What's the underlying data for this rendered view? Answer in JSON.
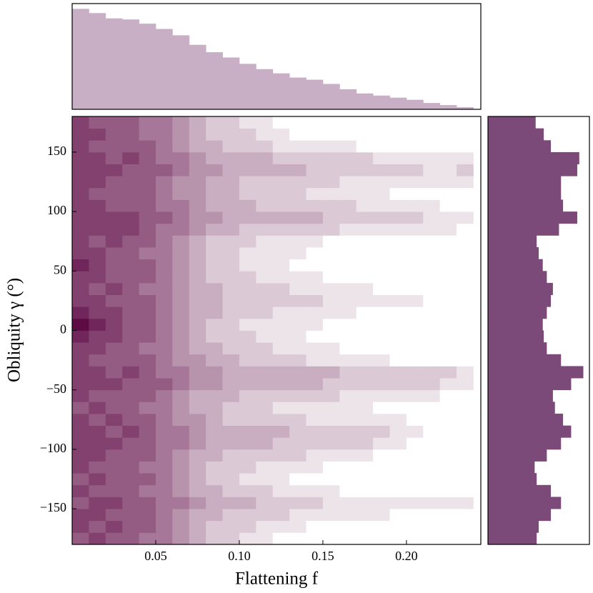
{
  "chart_data": [
    {
      "type": "heatmap",
      "xlabel": "Flattening f",
      "ylabel": "Obliquity γ (°)",
      "xbins": [
        0,
        0.01,
        0.02,
        0.03,
        0.04,
        0.05,
        0.06,
        0.07,
        0.08,
        0.09,
        0.1,
        0.11,
        0.12,
        0.13,
        0.14,
        0.15,
        0.16,
        0.17,
        0.18,
        0.19,
        0.2,
        0.21,
        0.22,
        0.23,
        0.24
      ],
      "ybins": [
        -180,
        -170,
        -160,
        -150,
        -140,
        -130,
        -120,
        -110,
        -100,
        -90,
        -80,
        -70,
        -60,
        -50,
        -40,
        -30,
        -20,
        -10,
        0,
        10,
        20,
        30,
        40,
        50,
        60,
        70,
        80,
        90,
        100,
        110,
        120,
        130,
        140,
        150,
        160,
        170,
        180
      ],
      "values": [
        [
          6,
          7,
          6,
          6,
          5,
          5,
          4,
          3,
          2,
          2,
          1,
          1,
          0,
          0,
          0,
          0,
          0,
          0,
          0,
          0,
          0,
          0,
          0,
          0
        ],
        [
          7,
          6,
          7,
          6,
          6,
          5,
          4,
          3,
          2,
          2,
          2,
          1,
          1,
          1,
          0,
          0,
          0,
          0,
          0,
          0,
          0,
          0,
          0,
          0
        ],
        [
          7,
          7,
          6,
          6,
          6,
          5,
          4,
          3,
          3,
          2,
          2,
          2,
          2,
          1,
          1,
          1,
          1,
          1,
          1,
          0,
          0,
          0,
          0,
          0
        ],
        [
          6,
          7,
          7,
          6,
          6,
          5,
          5,
          4,
          3,
          3,
          3,
          2,
          2,
          2,
          2,
          1,
          1,
          1,
          1,
          1,
          1,
          1,
          1,
          1
        ],
        [
          7,
          6,
          6,
          6,
          5,
          5,
          4,
          3,
          3,
          2,
          2,
          2,
          1,
          1,
          1,
          1,
          0,
          0,
          0,
          0,
          0,
          0,
          0,
          0
        ],
        [
          6,
          7,
          6,
          6,
          6,
          5,
          4,
          3,
          2,
          2,
          1,
          1,
          1,
          0,
          0,
          0,
          0,
          0,
          0,
          0,
          0,
          0,
          0,
          0
        ],
        [
          7,
          6,
          6,
          6,
          5,
          5,
          4,
          3,
          2,
          2,
          2,
          1,
          1,
          1,
          1,
          0,
          0,
          0,
          0,
          0,
          0,
          0,
          0,
          0
        ],
        [
          7,
          7,
          6,
          6,
          6,
          5,
          4,
          3,
          3,
          2,
          2,
          2,
          2,
          2,
          1,
          1,
          1,
          1,
          0,
          0,
          0,
          0,
          0,
          0
        ],
        [
          7,
          7,
          7,
          6,
          6,
          5,
          5,
          4,
          3,
          3,
          3,
          3,
          2,
          2,
          2,
          2,
          2,
          2,
          1,
          1,
          0,
          0,
          0,
          0
        ],
        [
          7,
          7,
          6,
          7,
          6,
          5,
          5,
          4,
          3,
          3,
          3,
          3,
          3,
          2,
          2,
          2,
          2,
          2,
          2,
          1,
          1,
          0,
          0,
          0
        ],
        [
          7,
          6,
          7,
          6,
          6,
          5,
          4,
          4,
          3,
          2,
          2,
          2,
          2,
          2,
          1,
          1,
          1,
          1,
          1,
          1,
          0,
          0,
          0,
          0
        ],
        [
          6,
          7,
          6,
          6,
          5,
          5,
          4,
          3,
          3,
          2,
          2,
          2,
          1,
          1,
          1,
          1,
          1,
          1,
          0,
          0,
          0,
          0,
          0,
          0
        ],
        [
          7,
          6,
          6,
          6,
          6,
          5,
          4,
          3,
          3,
          3,
          2,
          2,
          2,
          2,
          2,
          2,
          1,
          1,
          1,
          1,
          1,
          1,
          0,
          0
        ],
        [
          7,
          7,
          7,
          6,
          6,
          6,
          5,
          4,
          4,
          3,
          3,
          3,
          3,
          3,
          3,
          2,
          2,
          2,
          2,
          2,
          2,
          2,
          1,
          1
        ],
        [
          7,
          7,
          6,
          7,
          6,
          5,
          5,
          4,
          4,
          3,
          3,
          3,
          3,
          3,
          3,
          3,
          2,
          2,
          2,
          2,
          2,
          2,
          2,
          1
        ],
        [
          7,
          6,
          6,
          6,
          6,
          5,
          4,
          4,
          3,
          3,
          2,
          2,
          2,
          2,
          1,
          1,
          1,
          1,
          1,
          0,
          0,
          0,
          0,
          0
        ],
        [
          7,
          7,
          6,
          6,
          5,
          5,
          4,
          3,
          3,
          2,
          2,
          2,
          1,
          1,
          1,
          1,
          0,
          0,
          0,
          0,
          0,
          0,
          0,
          0
        ],
        [
          8,
          7,
          7,
          6,
          6,
          5,
          4,
          3,
          2,
          2,
          2,
          1,
          1,
          1,
          0,
          0,
          0,
          0,
          0,
          0,
          0,
          0,
          0,
          0
        ],
        [
          9,
          8,
          7,
          6,
          6,
          5,
          4,
          3,
          2,
          2,
          1,
          1,
          1,
          1,
          1,
          0,
          0,
          0,
          0,
          0,
          0,
          0,
          0,
          0
        ],
        [
          8,
          7,
          7,
          6,
          6,
          5,
          4,
          3,
          3,
          2,
          2,
          2,
          1,
          1,
          1,
          1,
          1,
          0,
          0,
          0,
          0,
          0,
          0,
          0
        ],
        [
          7,
          7,
          6,
          6,
          6,
          5,
          4,
          3,
          3,
          2,
          2,
          2,
          2,
          2,
          2,
          1,
          1,
          1,
          1,
          1,
          1,
          0,
          0,
          0
        ],
        [
          7,
          6,
          7,
          6,
          5,
          5,
          4,
          3,
          3,
          2,
          2,
          2,
          2,
          1,
          1,
          1,
          1,
          1,
          0,
          0,
          0,
          0,
          0,
          0
        ],
        [
          7,
          7,
          6,
          6,
          6,
          5,
          4,
          3,
          2,
          2,
          2,
          1,
          1,
          1,
          1,
          0,
          0,
          0,
          0,
          0,
          0,
          0,
          0,
          0
        ],
        [
          8,
          7,
          6,
          6,
          6,
          5,
          4,
          3,
          2,
          2,
          1,
          1,
          1,
          0,
          0,
          0,
          0,
          0,
          0,
          0,
          0,
          0,
          0,
          0
        ],
        [
          7,
          7,
          6,
          6,
          5,
          5,
          4,
          3,
          2,
          2,
          1,
          1,
          1,
          1,
          0,
          0,
          0,
          0,
          0,
          0,
          0,
          0,
          0,
          0
        ],
        [
          7,
          6,
          7,
          6,
          6,
          5,
          4,
          3,
          2,
          2,
          2,
          1,
          1,
          1,
          1,
          0,
          0,
          0,
          0,
          0,
          0,
          0,
          0,
          0
        ],
        [
          7,
          7,
          7,
          7,
          6,
          5,
          5,
          4,
          3,
          3,
          2,
          2,
          2,
          2,
          2,
          2,
          1,
          1,
          1,
          1,
          1,
          1,
          1,
          0
        ],
        [
          7,
          7,
          7,
          7,
          6,
          6,
          5,
          4,
          4,
          3,
          3,
          3,
          3,
          3,
          3,
          2,
          2,
          2,
          2,
          2,
          2,
          1,
          1,
          1
        ],
        [
          7,
          7,
          6,
          6,
          6,
          5,
          5,
          4,
          3,
          3,
          3,
          2,
          2,
          2,
          2,
          2,
          2,
          1,
          1,
          1,
          1,
          1,
          0,
          0
        ],
        [
          7,
          6,
          6,
          6,
          6,
          5,
          4,
          4,
          3,
          3,
          2,
          2,
          2,
          2,
          1,
          1,
          1,
          1,
          1,
          0,
          0,
          0,
          0,
          0
        ],
        [
          7,
          7,
          6,
          6,
          6,
          5,
          4,
          4,
          3,
          3,
          2,
          2,
          2,
          2,
          2,
          2,
          1,
          1,
          1,
          1,
          1,
          1,
          1,
          1
        ],
        [
          7,
          7,
          7,
          6,
          6,
          6,
          5,
          4,
          4,
          3,
          3,
          3,
          3,
          3,
          2,
          2,
          2,
          2,
          2,
          2,
          2,
          1,
          1,
          2
        ],
        [
          7,
          7,
          6,
          7,
          6,
          5,
          5,
          4,
          3,
          3,
          3,
          3,
          2,
          2,
          2,
          2,
          2,
          2,
          1,
          1,
          1,
          1,
          1,
          1
        ],
        [
          7,
          6,
          6,
          6,
          6,
          5,
          4,
          3,
          3,
          2,
          2,
          2,
          1,
          1,
          1,
          1,
          1,
          0,
          0,
          0,
          0,
          0,
          0,
          0
        ],
        [
          7,
          7,
          6,
          6,
          5,
          5,
          4,
          3,
          2,
          2,
          2,
          1,
          1,
          0,
          0,
          0,
          0,
          0,
          0,
          0,
          0,
          0,
          0,
          0
        ],
        [
          7,
          6,
          6,
          6,
          5,
          5,
          4,
          3,
          2,
          2,
          1,
          1,
          0,
          0,
          0,
          0,
          0,
          0,
          0,
          0,
          0,
          0,
          0,
          0
        ]
      ],
      "colors": [
        "#ffffff",
        "#5e0b45"
      ],
      "clim": [
        0,
        9
      ],
      "xlim": [
        0,
        0.2445
      ],
      "ylim": [
        -180,
        180
      ],
      "xticks": [
        0.05,
        {
          "value": 0.1,
          "label": "0.10"
        },
        0.15,
        {
          "value": 0.2,
          "label": "0.20"
        }
      ],
      "yticks": [
        {
          "value": -150,
          "label": "−150"
        },
        {
          "value": -100,
          "label": "−100"
        },
        {
          "value": -50,
          "label": "−50"
        },
        0,
        50,
        100,
        150
      ]
    },
    {
      "type": "histogram",
      "orientation": "vertical",
      "color": "#c9afc6",
      "bins": [
        0,
        0.01,
        0.02,
        0.03,
        0.04,
        0.05,
        0.06,
        0.07,
        0.08,
        0.09,
        0.1,
        0.11,
        0.12,
        0.13,
        0.14,
        0.15,
        0.16,
        0.17,
        0.18,
        0.19,
        0.2,
        0.21,
        0.22,
        0.23,
        0.24
      ],
      "values": [
        95,
        91,
        86,
        85,
        81,
        76,
        70,
        61,
        54,
        49,
        43,
        38,
        34,
        30,
        28,
        24,
        19,
        15,
        13,
        11,
        9,
        6,
        4,
        2
      ],
      "xlim": [
        0,
        0.2445
      ],
      "ylim": [
        0,
        100
      ]
    },
    {
      "type": "histogram",
      "orientation": "horizontal",
      "color": "#7b4a78",
      "bins": [
        -180,
        -170,
        -160,
        -150,
        -140,
        -130,
        -120,
        -110,
        -100,
        -90,
        -80,
        -70,
        -60,
        -50,
        -40,
        -30,
        -20,
        -10,
        0,
        10,
        20,
        30,
        40,
        50,
        60,
        70,
        80,
        90,
        100,
        110,
        120,
        130,
        140,
        150,
        160,
        170,
        180
      ],
      "values": [
        48,
        50,
        62,
        72,
        62,
        48,
        46,
        58,
        72,
        82,
        74,
        66,
        64,
        82,
        94,
        72,
        58,
        55,
        54,
        58,
        62,
        64,
        58,
        54,
        50,
        48,
        70,
        88,
        74,
        72,
        72,
        88,
        90,
        62,
        55,
        47
      ],
      "ylim": [
        -180,
        180
      ],
      "xlim": [
        0,
        100
      ]
    }
  ]
}
